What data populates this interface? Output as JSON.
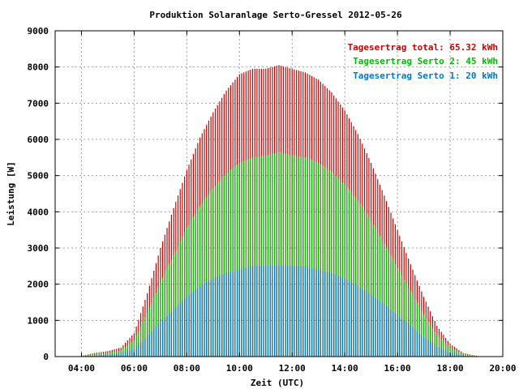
{
  "chart_data": {
    "type": "bar",
    "title": "Produktion Solaranlage Serto-Gressel 2012-05-26",
    "xlabel": "Zeit (UTC)",
    "ylabel": "Leistung [W]",
    "xlim": [
      3,
      20
    ],
    "ylim": [
      0,
      9000
    ],
    "x_ticks": [
      "04:00",
      "06:00",
      "08:00",
      "10:00",
      "12:00",
      "14:00",
      "16:00",
      "18:00",
      "20:00"
    ],
    "y_ticks": [
      "0",
      "1000",
      "2000",
      "3000",
      "4000",
      "5000",
      "6000",
      "7000",
      "8000",
      "9000"
    ],
    "grid": true,
    "legend_position": "top-right",
    "colors": {
      "total": "#cc0000",
      "serto2": "#00bb00",
      "serto1": "#0077cc"
    },
    "legend": [
      {
        "key": "total",
        "label": "Tagesertrag total: 65.32 kWh"
      },
      {
        "key": "serto2",
        "label": "Tagesertrag Serto 2: 45 kWh"
      },
      {
        "key": "serto1",
        "label": "Tagesertrag Serto 1: 20 kWh"
      }
    ],
    "x_hours": [
      4,
      4.5,
      5,
      5.5,
      6,
      6.5,
      7,
      7.5,
      8,
      8.5,
      9,
      9.5,
      10,
      10.5,
      11,
      11.5,
      12,
      12.5,
      13,
      13.5,
      14,
      14.5,
      15,
      15.5,
      16,
      16.5,
      17,
      17.5,
      18,
      18.5,
      19
    ],
    "series": [
      {
        "key": "total",
        "name": "Tagesertrag total: 65.32 kWh",
        "values": [
          20,
          100,
          150,
          250,
          650,
          1750,
          3000,
          4100,
          5150,
          6050,
          6750,
          7350,
          7800,
          7950,
          7950,
          8050,
          7950,
          7850,
          7650,
          7300,
          6800,
          6150,
          5350,
          4450,
          3500,
          2550,
          1650,
          850,
          350,
          100,
          20
        ]
      },
      {
        "key": "serto2",
        "name": "Tagesertrag Serto 2: 45 kWh",
        "values": [
          15,
          70,
          100,
          170,
          450,
          1200,
          2050,
          2800,
          3550,
          4150,
          4650,
          5050,
          5350,
          5500,
          5550,
          5650,
          5550,
          5500,
          5350,
          5100,
          4750,
          4300,
          3750,
          3100,
          2450,
          1800,
          1150,
          600,
          250,
          70,
          15
        ]
      },
      {
        "key": "serto1",
        "name": "Tagesertrag Serto 1: 20 kWh",
        "values": [
          5,
          30,
          50,
          80,
          200,
          550,
          950,
          1300,
          1650,
          1950,
          2150,
          2300,
          2400,
          2500,
          2500,
          2520,
          2500,
          2480,
          2400,
          2300,
          2150,
          1950,
          1700,
          1450,
          1150,
          850,
          550,
          280,
          110,
          30,
          5
        ]
      }
    ]
  }
}
